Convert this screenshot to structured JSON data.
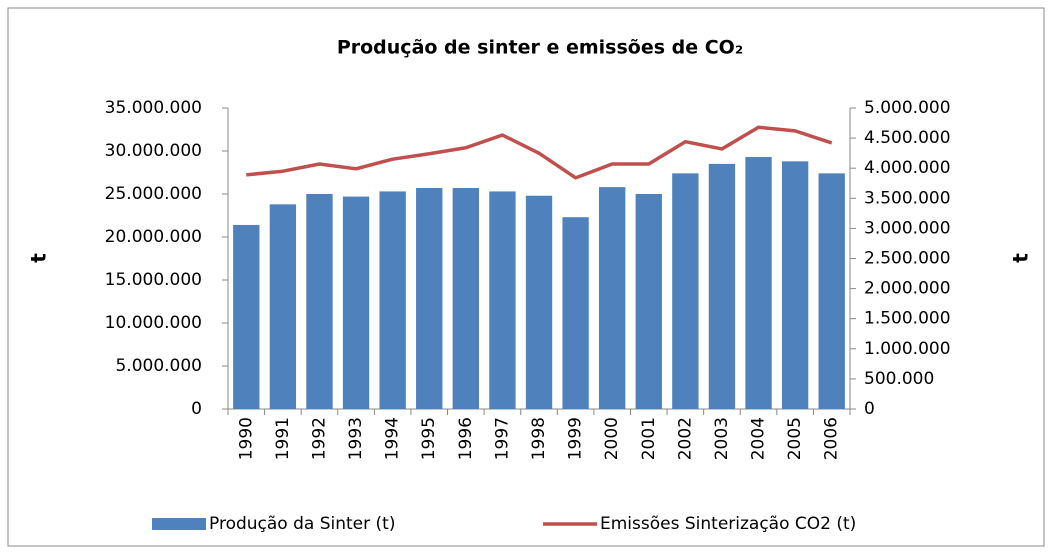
{
  "chart_data": {
    "type": "bar",
    "title": "Produção de sinter e emissões de CO₂",
    "y_label": "t",
    "y2_label": "t",
    "categories": [
      "1990",
      "1991",
      "1992",
      "1993",
      "1994",
      "1995",
      "1996",
      "1997",
      "1998",
      "1999",
      "2000",
      "2001",
      "2002",
      "2003",
      "2004",
      "2005",
      "2006"
    ],
    "series": [
      {
        "name": "Produção da Sinter (t)",
        "color": "#4f81bd",
        "type": "bar",
        "values": [
          21400000,
          23800000,
          25000000,
          24700000,
          25300000,
          25700000,
          25700000,
          25300000,
          24800000,
          22300000,
          25800000,
          25000000,
          27400000,
          28500000,
          29300000,
          28800000,
          27400000
        ]
      },
      {
        "name": "Emissões Sinterização CO2 (t)",
        "color": "#c0504d",
        "type": "line",
        "axis": "y2",
        "values": [
          3890000,
          3950000,
          4070000,
          3990000,
          4150000,
          4240000,
          4340000,
          4550000,
          4250000,
          3840000,
          4070000,
          4070000,
          4440000,
          4320000,
          4680000,
          4620000,
          4420000
        ]
      }
    ],
    "ylim": [
      0,
      35000000
    ],
    "yticks": [
      0,
      {
        "value": 5000000,
        "label": "5.000.000"
      },
      {
        "value": 10000000,
        "label": "10.000.000"
      },
      {
        "value": 15000000,
        "label": "15.000.000"
      },
      {
        "value": 20000000,
        "label": "20.000.000"
      },
      {
        "value": 25000000,
        "label": "25.000.000"
      },
      {
        "value": 30000000,
        "label": "30.000.000"
      },
      {
        "value": 35000000,
        "label": "35.000.000"
      }
    ],
    "y2lim": [
      0,
      5000000
    ],
    "y2ticks": [
      0,
      {
        "value": 500000,
        "label": "500.000"
      },
      {
        "value": 1000000,
        "label": "1.000.000"
      },
      {
        "value": 1500000,
        "label": "1.500.000"
      },
      {
        "value": 2000000,
        "label": "2.000.000"
      },
      {
        "value": 2500000,
        "label": "2.500.000"
      },
      {
        "value": 3000000,
        "label": "3.000.000"
      },
      {
        "value": 3500000,
        "label": "3.500.000"
      },
      {
        "value": 4000000,
        "label": "4.000.000"
      },
      {
        "value": 4500000,
        "label": "4.500.000"
      },
      {
        "value": 5000000,
        "label": "5.000.000"
      }
    ],
    "grid": false,
    "legend": "bottom"
  }
}
